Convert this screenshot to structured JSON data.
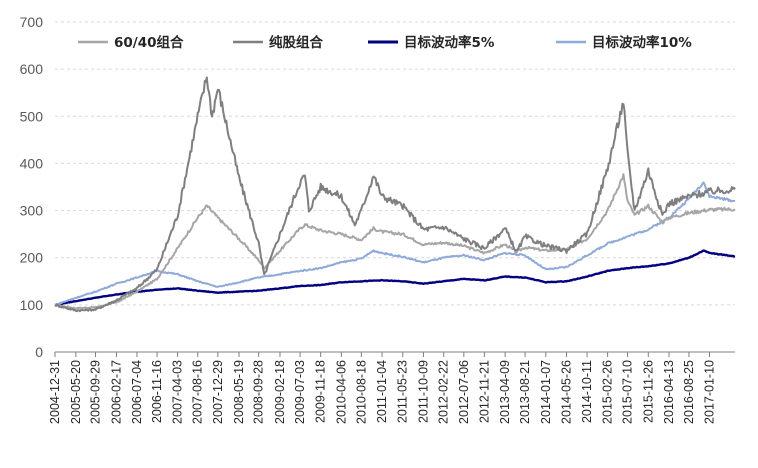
{
  "chart_data": {
    "type": "line",
    "title": "",
    "xlabel": "",
    "ylabel": "",
    "ylim": [
      0,
      700
    ],
    "yticks": [
      0,
      100,
      200,
      300,
      400,
      500,
      600,
      700
    ],
    "grid": "horizontal dashed",
    "legend_position": "top",
    "x_tick_labels": [
      "2004-12-31",
      "2005-05-20",
      "2005-09-29",
      "2006-02-17",
      "2006-07-04",
      "2006-11-16",
      "2007-04-03",
      "2007-08-16",
      "2007-12-29",
      "2008-05-19",
      "2008-09-28",
      "2009-02-18",
      "2009-07-03",
      "2009-11-18",
      "2010-04-06",
      "2010-08-18",
      "2011-01-04",
      "2011-05-23",
      "2011-10-09",
      "2012-02-22",
      "2012-07-06",
      "2012-11-21",
      "2013-04-09",
      "2013-08-21",
      "2014-01-07",
      "2014-05-26",
      "2014-10-11",
      "2015-02-26",
      "2015-07-10",
      "2015-11-26",
      "2016-04-13",
      "2016-08-25",
      "2017-01-10"
    ],
    "x_range": [
      "2004-12-31",
      "2017-06-30"
    ],
    "series": [
      {
        "name": "60/40组合",
        "color": "#a6a6a6",
        "points": [
          [
            "2004-12-31",
            100
          ],
          [
            "2005-05-20",
            93
          ],
          [
            "2005-09-29",
            95
          ],
          [
            "2006-02-17",
            105
          ],
          [
            "2006-07-04",
            128
          ],
          [
            "2006-11-16",
            155
          ],
          [
            "2007-04-03",
            220
          ],
          [
            "2007-08-16",
            285
          ],
          [
            "2007-10-16",
            310
          ],
          [
            "2007-12-29",
            285
          ],
          [
            "2008-05-19",
            240
          ],
          [
            "2008-09-28",
            195
          ],
          [
            "2008-11-04",
            178
          ],
          [
            "2009-02-18",
            215
          ],
          [
            "2009-07-03",
            262
          ],
          [
            "2009-08-04",
            270
          ],
          [
            "2009-11-18",
            258
          ],
          [
            "2010-04-06",
            250
          ],
          [
            "2010-08-18",
            238
          ],
          [
            "2010-11-08",
            262
          ],
          [
            "2011-01-04",
            255
          ],
          [
            "2011-05-23",
            250
          ],
          [
            "2011-10-09",
            228
          ],
          [
            "2012-02-22",
            232
          ],
          [
            "2012-07-06",
            225
          ],
          [
            "2012-11-21",
            210
          ],
          [
            "2013-04-09",
            228
          ],
          [
            "2013-06-25",
            212
          ],
          [
            "2013-08-21",
            222
          ],
          [
            "2014-01-07",
            215
          ],
          [
            "2014-05-26",
            218
          ],
          [
            "2014-10-11",
            240
          ],
          [
            "2015-02-26",
            300
          ],
          [
            "2015-06-12",
            375
          ],
          [
            "2015-07-10",
            320
          ],
          [
            "2015-08-26",
            290
          ],
          [
            "2015-11-26",
            310
          ],
          [
            "2016-02-29",
            275
          ],
          [
            "2016-04-13",
            285
          ],
          [
            "2016-08-25",
            295
          ],
          [
            "2017-01-10",
            302
          ],
          [
            "2017-06-30",
            303
          ]
        ]
      },
      {
        "name": "纯股组合",
        "color": "#7f7f7f",
        "points": [
          [
            "2004-12-31",
            100
          ],
          [
            "2005-05-20",
            88
          ],
          [
            "2005-09-29",
            90
          ],
          [
            "2006-02-17",
            110
          ],
          [
            "2006-07-04",
            135
          ],
          [
            "2006-11-16",
            175
          ],
          [
            "2007-04-03",
            290
          ],
          [
            "2007-08-16",
            500
          ],
          [
            "2007-10-16",
            585
          ],
          [
            "2007-11-20",
            500
          ],
          [
            "2007-12-29",
            560
          ],
          [
            "2008-05-19",
            370
          ],
          [
            "2008-09-28",
            230
          ],
          [
            "2008-11-04",
            162
          ],
          [
            "2009-02-18",
            250
          ],
          [
            "2009-07-03",
            360
          ],
          [
            "2009-08-04",
            375
          ],
          [
            "2009-08-31",
            300
          ],
          [
            "2009-11-18",
            350
          ],
          [
            "2010-04-06",
            330
          ],
          [
            "2010-07-05",
            270
          ],
          [
            "2010-08-18",
            300
          ],
          [
            "2010-11-08",
            375
          ],
          [
            "2011-01-04",
            330
          ],
          [
            "2011-05-23",
            310
          ],
          [
            "2011-10-09",
            260
          ],
          [
            "2012-02-22",
            265
          ],
          [
            "2012-07-06",
            240
          ],
          [
            "2012-11-21",
            220
          ],
          [
            "2013-04-09",
            262
          ],
          [
            "2013-06-25",
            212
          ],
          [
            "2013-08-21",
            245
          ],
          [
            "2014-01-07",
            225
          ],
          [
            "2014-05-26",
            215
          ],
          [
            "2014-10-11",
            250
          ],
          [
            "2015-02-26",
            390
          ],
          [
            "2015-06-12",
            532
          ],
          [
            "2015-07-10",
            420
          ],
          [
            "2015-08-26",
            300
          ],
          [
            "2015-11-26",
            385
          ],
          [
            "2016-02-29",
            290
          ],
          [
            "2016-04-13",
            315
          ],
          [
            "2016-08-25",
            330
          ],
          [
            "2017-01-10",
            340
          ],
          [
            "2017-06-30",
            345
          ]
        ]
      },
      {
        "name": "目标波动率5%",
        "color": "#000080",
        "points": [
          [
            "2004-12-31",
            100
          ],
          [
            "2005-05-20",
            108
          ],
          [
            "2005-09-29",
            115
          ],
          [
            "2006-02-17",
            122
          ],
          [
            "2006-07-04",
            128
          ],
          [
            "2006-11-16",
            132
          ],
          [
            "2007-04-03",
            135
          ],
          [
            "2007-08-16",
            130
          ],
          [
            "2007-12-29",
            126
          ],
          [
            "2008-05-19",
            128
          ],
          [
            "2008-09-28",
            130
          ],
          [
            "2009-02-18",
            135
          ],
          [
            "2009-07-03",
            140
          ],
          [
            "2009-11-18",
            142
          ],
          [
            "2010-04-06",
            148
          ],
          [
            "2010-08-18",
            150
          ],
          [
            "2011-01-04",
            152
          ],
          [
            "2011-05-23",
            150
          ],
          [
            "2011-10-09",
            145
          ],
          [
            "2012-02-22",
            150
          ],
          [
            "2012-07-06",
            155
          ],
          [
            "2012-11-21",
            152
          ],
          [
            "2013-04-09",
            160
          ],
          [
            "2013-08-21",
            158
          ],
          [
            "2014-01-07",
            148
          ],
          [
            "2014-05-26",
            150
          ],
          [
            "2014-10-11",
            160
          ],
          [
            "2015-02-26",
            172
          ],
          [
            "2015-07-10",
            178
          ],
          [
            "2015-11-26",
            182
          ],
          [
            "2016-04-13",
            188
          ],
          [
            "2016-08-25",
            200
          ],
          [
            "2016-12-01",
            215
          ],
          [
            "2017-01-10",
            210
          ],
          [
            "2017-06-30",
            203
          ]
        ]
      },
      {
        "name": "目标波动率10%",
        "color": "#8eaadb",
        "points": [
          [
            "2004-12-31",
            100
          ],
          [
            "2005-05-20",
            115
          ],
          [
            "2005-09-29",
            128
          ],
          [
            "2006-02-17",
            145
          ],
          [
            "2006-07-04",
            158
          ],
          [
            "2006-11-16",
            172
          ],
          [
            "2007-04-03",
            165
          ],
          [
            "2007-08-16",
            150
          ],
          [
            "2007-12-29",
            138
          ],
          [
            "2008-05-19",
            148
          ],
          [
            "2008-09-28",
            158
          ],
          [
            "2009-02-18",
            165
          ],
          [
            "2009-07-03",
            172
          ],
          [
            "2009-11-18",
            178
          ],
          [
            "2010-04-06",
            190
          ],
          [
            "2010-08-18",
            198
          ],
          [
            "2010-11-08",
            215
          ],
          [
            "2011-01-04",
            210
          ],
          [
            "2011-05-23",
            202
          ],
          [
            "2011-10-09",
            190
          ],
          [
            "2012-02-22",
            200
          ],
          [
            "2012-07-06",
            205
          ],
          [
            "2012-11-21",
            195
          ],
          [
            "2013-04-09",
            210
          ],
          [
            "2013-08-21",
            205
          ],
          [
            "2014-01-07",
            175
          ],
          [
            "2014-05-26",
            180
          ],
          [
            "2014-10-11",
            205
          ],
          [
            "2015-02-26",
            230
          ],
          [
            "2015-07-10",
            245
          ],
          [
            "2015-11-26",
            260
          ],
          [
            "2016-04-13",
            285
          ],
          [
            "2016-08-25",
            325
          ],
          [
            "2016-12-01",
            360
          ],
          [
            "2017-01-10",
            330
          ],
          [
            "2017-06-30",
            320
          ]
        ]
      }
    ]
  }
}
